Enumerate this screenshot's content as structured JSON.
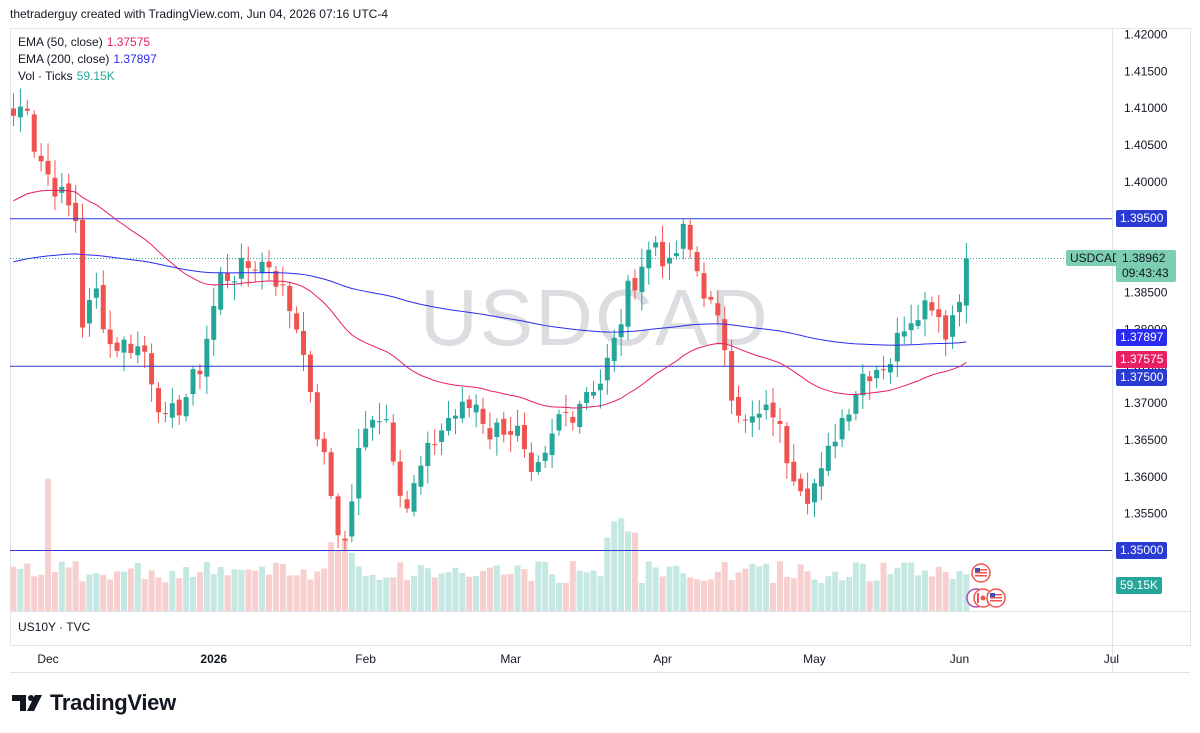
{
  "header": {
    "credit": "thetraderguy created with TradingView.com, Jun 04, 2026 07:16 UTC-4"
  },
  "legend": {
    "ema50_label": "EMA (50, close)",
    "ema50_value": "1.37575",
    "ema200_label": "EMA (200, close)",
    "ema200_value": "1.37897",
    "vol_label": "Vol · Ticks",
    "vol_value": "59.15K"
  },
  "watermark": "USDCAD",
  "sub_pane_label": "US10Y · TVC",
  "brand": "TradingView",
  "colors": {
    "up": "#26a69a",
    "down": "#ef5350",
    "ema50": "#e91e63",
    "ema200": "#2a2af0",
    "hline": "#2a3bd4",
    "vol_up": "#c5e8e2",
    "vol_down": "#f7cfcf"
  },
  "tags": {
    "symbol": "USDCAD",
    "last_price": "1.38962",
    "countdown": "09:43:43",
    "hline_1": "1.39500",
    "hline_2": "1.37500",
    "hline_3": "1.35000",
    "ema200": "1.37897",
    "ema50": "1.37575",
    "volume": "59.15K"
  },
  "chart_data": {
    "type": "candlestick",
    "symbol": "USDCAD",
    "timeframe": "daily",
    "ylim": [
      1.346,
      1.4225
    ],
    "y_ticks": [
      "1.35500",
      "1.36000",
      "1.36500",
      "1.37000",
      "1.37500",
      "1.38000",
      "1.38500",
      "1.39000",
      "1.39500",
      "1.40000",
      "1.40500",
      "1.41000",
      "1.41500",
      "1.42000"
    ],
    "y_tick_values": [
      1.355,
      1.36,
      1.365,
      1.37,
      1.375,
      1.38,
      1.385,
      1.39,
      1.395,
      1.4,
      1.405,
      1.41,
      1.415,
      1.42
    ],
    "x_ticks": [
      "Dec",
      "2026",
      "Feb",
      "Mar",
      "Apr",
      "May",
      "Jun",
      "Jul"
    ],
    "x_tick_bar_index": [
      5,
      29,
      51,
      72,
      94,
      116,
      137,
      159
    ],
    "horizontal_lines": [
      1.395,
      1.375,
      1.35
    ],
    "last_price": 1.38962,
    "indicators": [
      {
        "name": "EMA (50, close)",
        "value": 1.37575
      },
      {
        "name": "EMA (200, close)",
        "value": 1.37897
      }
    ],
    "volume_last": "59.15K",
    "anchors": [
      [
        0,
        1.409
      ],
      [
        2,
        1.411
      ],
      [
        3,
        1.405
      ],
      [
        5,
        1.401
      ],
      [
        7,
        1.398
      ],
      [
        9,
        1.395
      ],
      [
        10,
        1.381
      ],
      [
        12,
        1.385
      ],
      [
        14,
        1.378
      ],
      [
        17,
        1.378
      ],
      [
        19,
        1.377
      ],
      [
        22,
        1.367
      ],
      [
        25,
        1.371
      ],
      [
        27,
        1.375
      ],
      [
        30,
        1.387
      ],
      [
        33,
        1.388
      ],
      [
        35,
        1.389
      ],
      [
        37,
        1.389
      ],
      [
        40,
        1.383
      ],
      [
        42,
        1.378
      ],
      [
        43,
        1.37
      ],
      [
        45,
        1.362
      ],
      [
        47,
        1.353
      ],
      [
        48,
        1.351
      ],
      [
        50,
        1.363
      ],
      [
        52,
        1.369
      ],
      [
        54,
        1.368
      ],
      [
        56,
        1.359
      ],
      [
        57,
        1.356
      ],
      [
        59,
        1.361
      ],
      [
        61,
        1.365
      ],
      [
        63,
        1.368
      ],
      [
        65,
        1.369
      ],
      [
        67,
        1.37
      ],
      [
        69,
        1.366
      ],
      [
        71,
        1.367
      ],
      [
        73,
        1.366
      ],
      [
        75,
        1.359
      ],
      [
        77,
        1.362
      ],
      [
        79,
        1.368
      ],
      [
        81,
        1.369
      ],
      [
        83,
        1.372
      ],
      [
        85,
        1.373
      ],
      [
        87,
        1.378
      ],
      [
        89,
        1.385
      ],
      [
        91,
        1.389
      ],
      [
        93,
        1.392
      ],
      [
        95,
        1.388
      ],
      [
        97,
        1.393
      ],
      [
        99,
        1.388
      ],
      [
        101,
        1.383
      ],
      [
        103,
        1.378
      ],
      [
        104,
        1.372
      ],
      [
        106,
        1.367
      ],
      [
        108,
        1.368
      ],
      [
        110,
        1.369
      ],
      [
        112,
        1.363
      ],
      [
        113,
        1.361
      ],
      [
        115,
        1.358
      ],
      [
        117,
        1.36
      ],
      [
        119,
        1.366
      ],
      [
        121,
        1.37
      ],
      [
        123,
        1.374
      ],
      [
        125,
        1.375
      ],
      [
        127,
        1.376
      ],
      [
        129,
        1.381
      ],
      [
        131,
        1.383
      ],
      [
        133,
        1.384
      ],
      [
        135,
        1.38
      ],
      [
        137,
        1.384
      ],
      [
        138,
        1.389
      ]
    ]
  }
}
